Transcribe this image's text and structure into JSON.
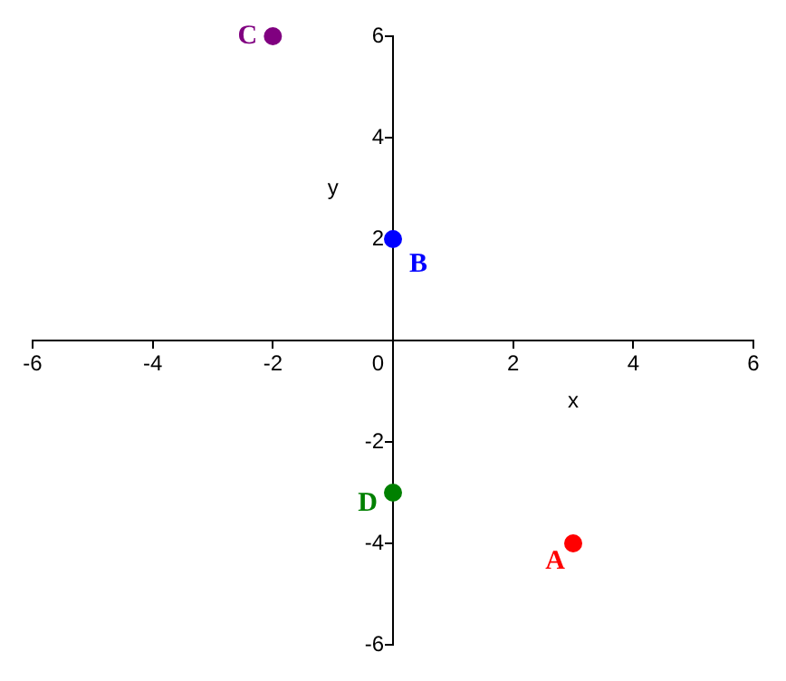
{
  "chart_data": {
    "type": "scatter",
    "xlabel": "x",
    "ylabel": "y",
    "xlim": [
      -6,
      6
    ],
    "ylim": [
      -6,
      6
    ],
    "xticks": [
      -6,
      -4,
      -2,
      0,
      2,
      4,
      6
    ],
    "yticks": [
      -6,
      -4,
      -2,
      2,
      4,
      6
    ],
    "grid": false,
    "legend": false,
    "marker": "circle",
    "series": [
      {
        "name": "A",
        "color": "#ff0000",
        "x": [
          3
        ],
        "values": [
          -4
        ]
      },
      {
        "name": "B",
        "color": "#0000ff",
        "x": [
          0
        ],
        "values": [
          2
        ]
      },
      {
        "name": "C",
        "color": "#800080",
        "x": [
          -2
        ],
        "values": [
          6
        ]
      },
      {
        "name": "D",
        "color": "#008000",
        "x": [
          0
        ],
        "values": [
          -3
        ]
      }
    ]
  }
}
